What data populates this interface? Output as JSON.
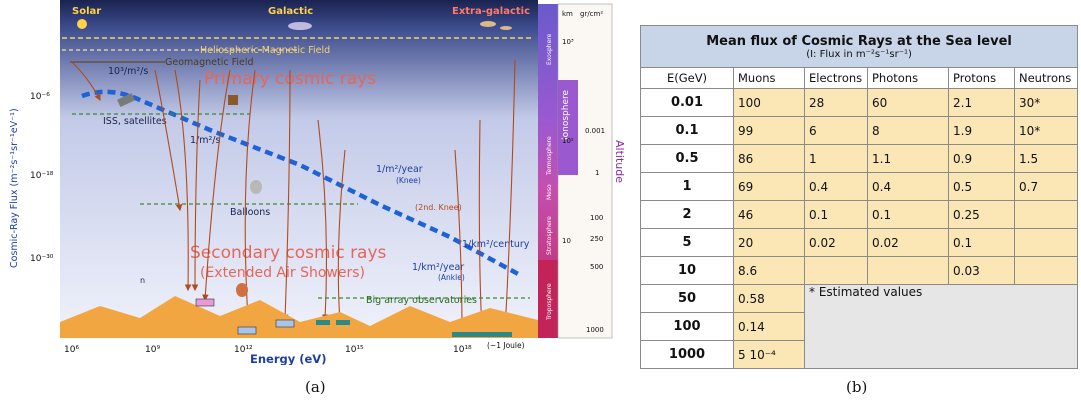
{
  "panel_a": {
    "top_labels": {
      "solar": "Solar",
      "galactic": "Galactic",
      "extragalactic": "Extra-galactic"
    },
    "heliospheric": "Heliospheric Magnetic Field",
    "geomagnetic": "Geomagnetic Field",
    "primary": "Primary cosmic rays",
    "secondary_1": "Secondary cosmic rays",
    "secondary_2": "(Extended Air Showers)",
    "flux_103": "10³/m²/s",
    "flux_1m2s": "1/m²/s",
    "iss": "ISS, satellites",
    "balloons": "Balloons",
    "knee_flux": "1/m²/year",
    "knee": "(Knee)",
    "second_knee": "(2nd. Knee)",
    "century": "1/km²/century",
    "ankle_flux": "1/km²/year",
    "ankle": "(Ankle)",
    "big_array": "Big array observatories",
    "joule": "(~1 Joule)",
    "n_label": "n",
    "xlabel": "Energy (eV)",
    "ylabel": "Cosmic-Ray Flux (m⁻²s⁻¹sr⁻¹eV⁻¹)",
    "x_ticks": [
      "10⁶",
      "10⁹",
      "10¹²",
      "10¹⁵",
      "10¹⁸"
    ],
    "y_ticks": [
      "10⁻⁶",
      "10⁻¹⁸",
      "10⁻³⁰"
    ],
    "atm_layers": [
      "Exosphere",
      "Ionosphere",
      "Termosphere",
      "Meso",
      "Stratosphere",
      "Troposphere"
    ],
    "km_header": "km",
    "gr_header": "gr/cm²",
    "km_ticks": [
      "10³",
      "10²",
      "10"
    ],
    "gr_ticks": [
      "0.001",
      "1",
      "100",
      "250",
      "500",
      "1000"
    ],
    "altitude": "Altitude",
    "colors": {
      "flux_line": "#1e63d6",
      "arrow": "#b24a1c",
      "mountain": "#f2a642",
      "text_red": "#e8655a"
    }
  },
  "table": {
    "title": "Mean flux of Cosmic Rays at the Sea level",
    "subtitle": "(I: Flux in m⁻²s⁻¹sr⁻¹)",
    "headers": [
      "E(GeV)",
      "Muons",
      "Electrons",
      "Photons",
      "Protons",
      "Neutrons"
    ],
    "rows": [
      [
        "0.01",
        "100",
        "28",
        "60",
        "2.1",
        "30*"
      ],
      [
        "0.1",
        "99",
        "6",
        "8",
        "1.9",
        "10*"
      ],
      [
        "0.5",
        "86",
        "1",
        "1.1",
        "0.9",
        "1.5"
      ],
      [
        "1",
        "69",
        "0.4",
        "0.4",
        "0.5",
        "0.7"
      ],
      [
        "2",
        "46",
        "0.1",
        "0.1",
        "0.25",
        ""
      ],
      [
        "5",
        "20",
        "0.02",
        "0.02",
        "0.1",
        ""
      ],
      [
        "10",
        "8.6",
        "",
        "",
        "0.03",
        ""
      ],
      [
        "50",
        "0.58"
      ],
      [
        "100",
        "0.14"
      ],
      [
        "1000",
        "5 10⁻⁴"
      ]
    ],
    "note": "* Estimated values"
  },
  "captions": {
    "a": "(a)",
    "b": "(b)"
  }
}
